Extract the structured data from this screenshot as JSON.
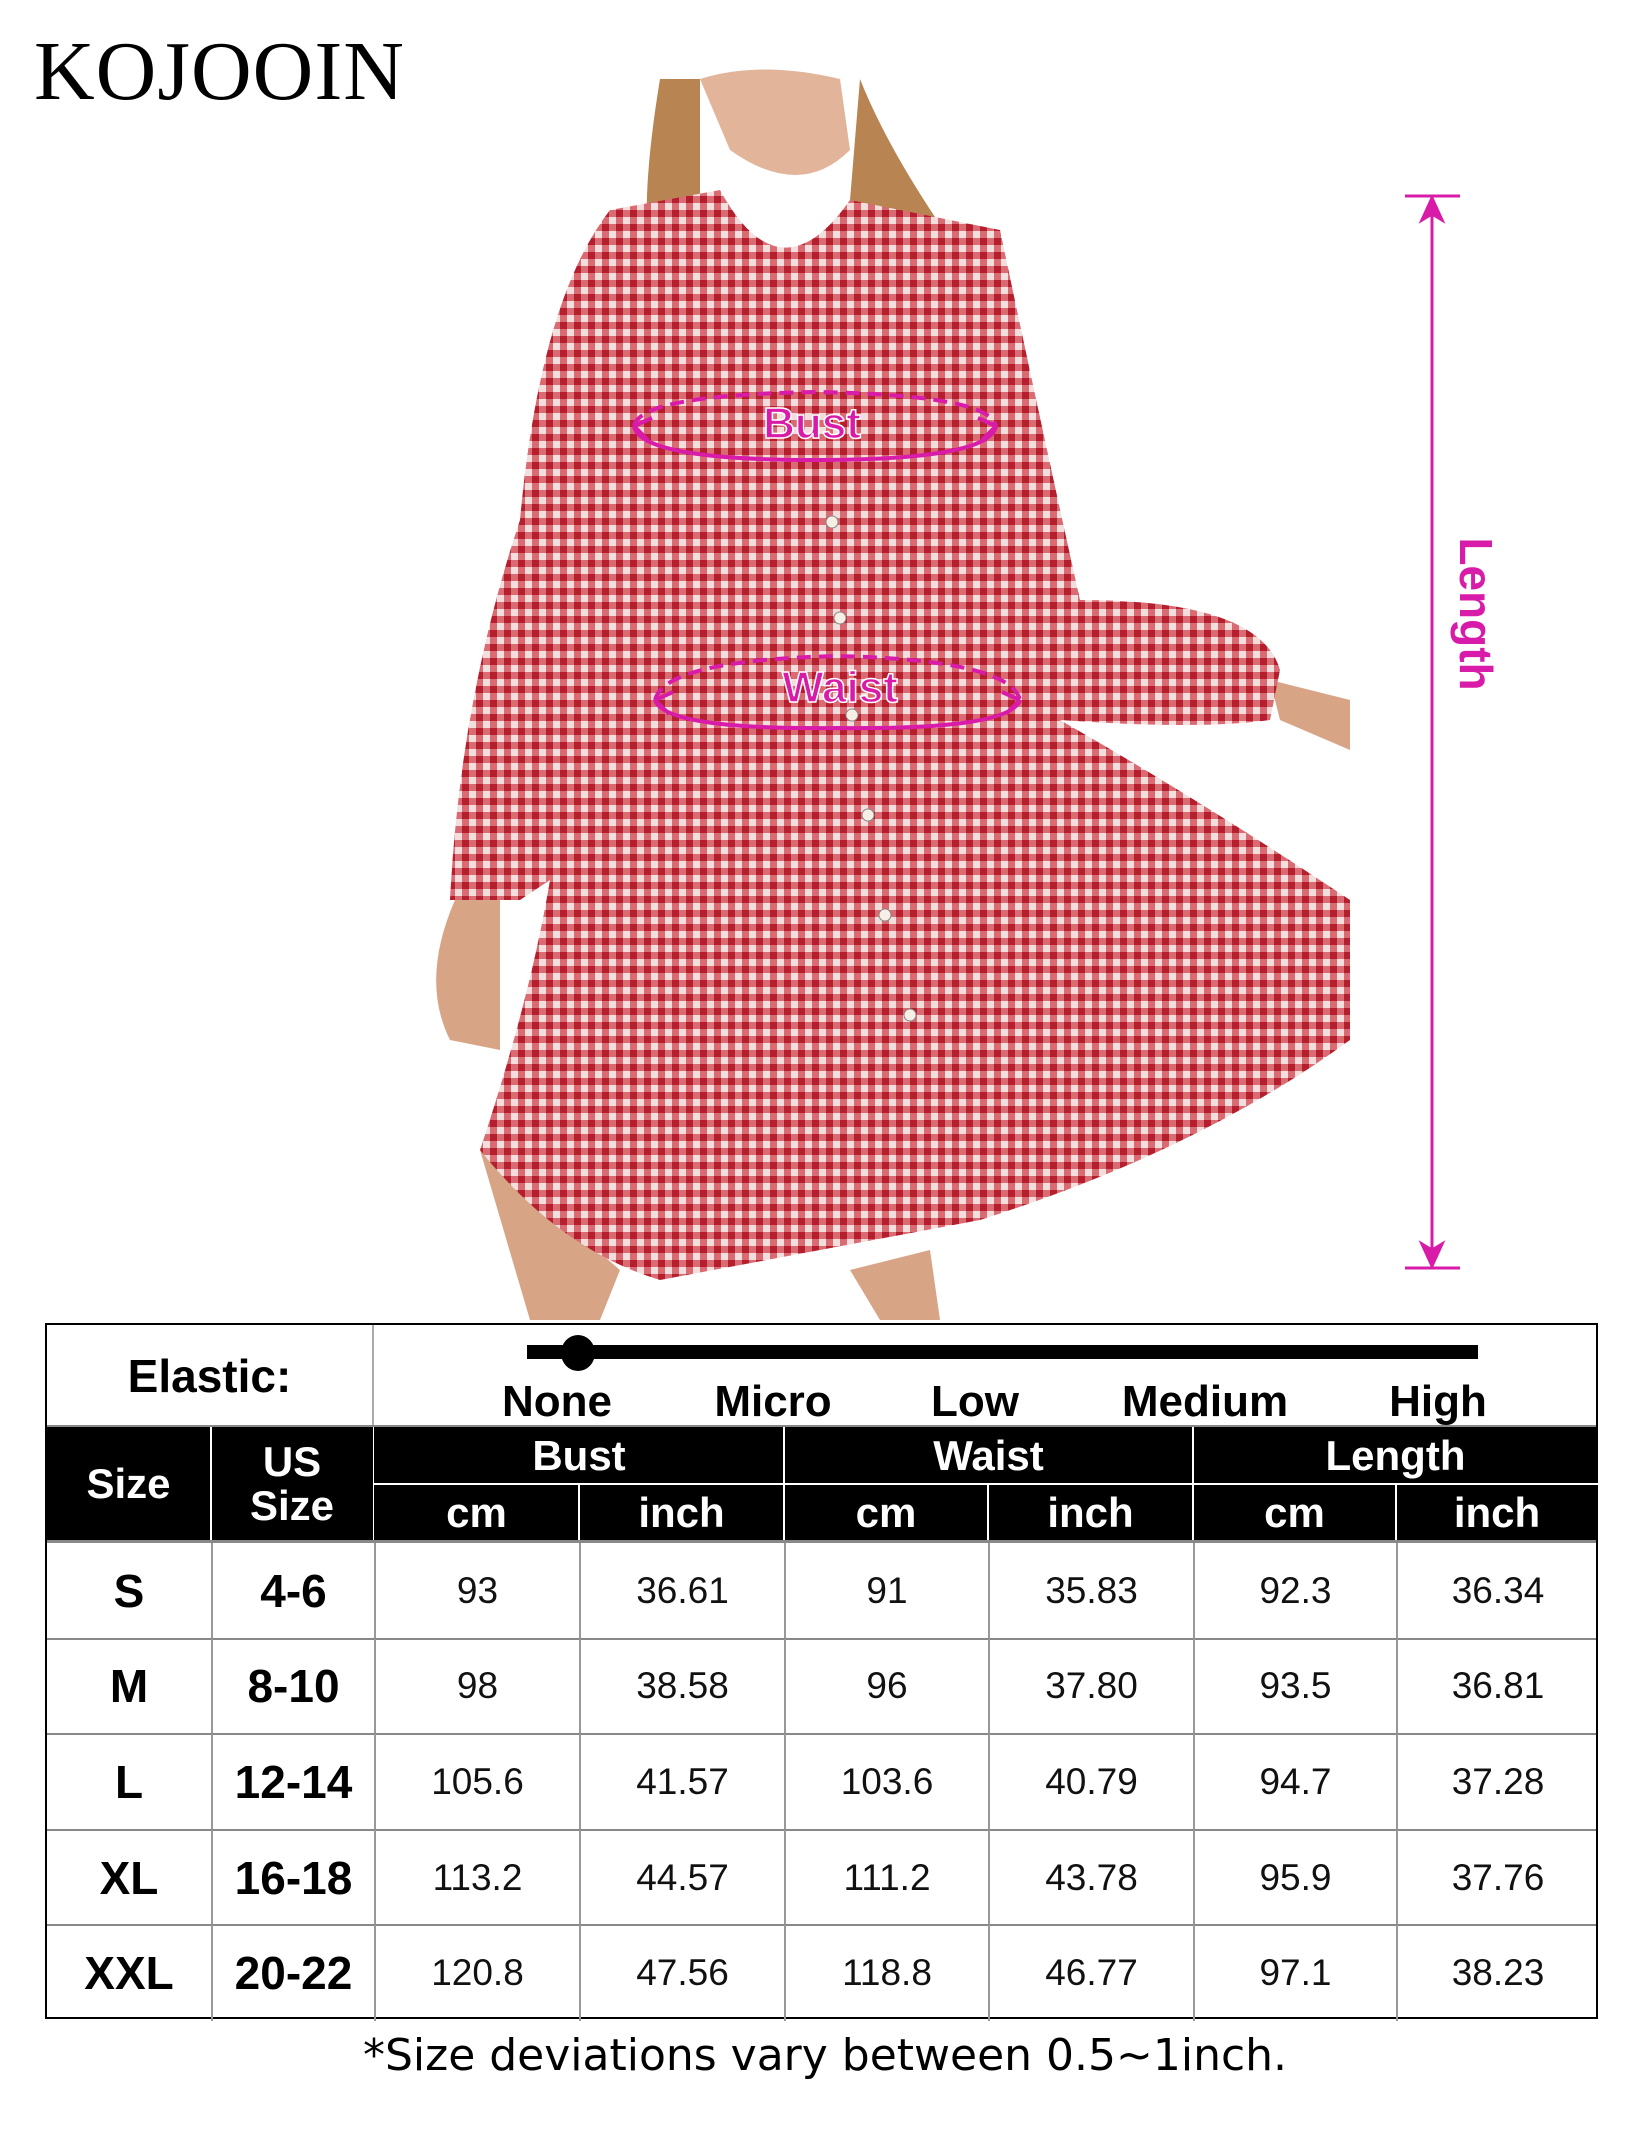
{
  "brand": "KOJOOIN",
  "annotations": {
    "bust": "Bust",
    "waist": "Waist",
    "length": "Length",
    "color": "#d81ba8"
  },
  "elastic": {
    "label": "Elastic:",
    "levels": [
      "None",
      "Micro",
      "Low",
      "Medium",
      "High"
    ],
    "selected": "None"
  },
  "table": {
    "headers": {
      "size": "Size",
      "us_size": "US\nSize",
      "us_line1": "US",
      "us_line2": "Size",
      "bust": "Bust",
      "waist": "Waist",
      "length": "Length",
      "cm": "cm",
      "inch": "inch"
    },
    "rows": [
      [
        "S",
        "4-6",
        "93",
        "36.61",
        "91",
        "35.83",
        "92.3",
        "36.34"
      ],
      [
        "M",
        "8-10",
        "98",
        "38.58",
        "96",
        "37.80",
        "93.5",
        "36.81"
      ],
      [
        "L",
        "12-14",
        "105.6",
        "41.57",
        "103.6",
        "40.79",
        "94.7",
        "37.28"
      ],
      [
        "XL",
        "16-18",
        "113.2",
        "44.57",
        "111.2",
        "43.78",
        "95.9",
        "37.76"
      ],
      [
        "XXL",
        "20-22",
        "120.8",
        "47.56",
        "118.8",
        "46.77",
        "97.1",
        "38.23"
      ]
    ]
  },
  "footnote": "*Size deviations vary between 0.5~1inch."
}
